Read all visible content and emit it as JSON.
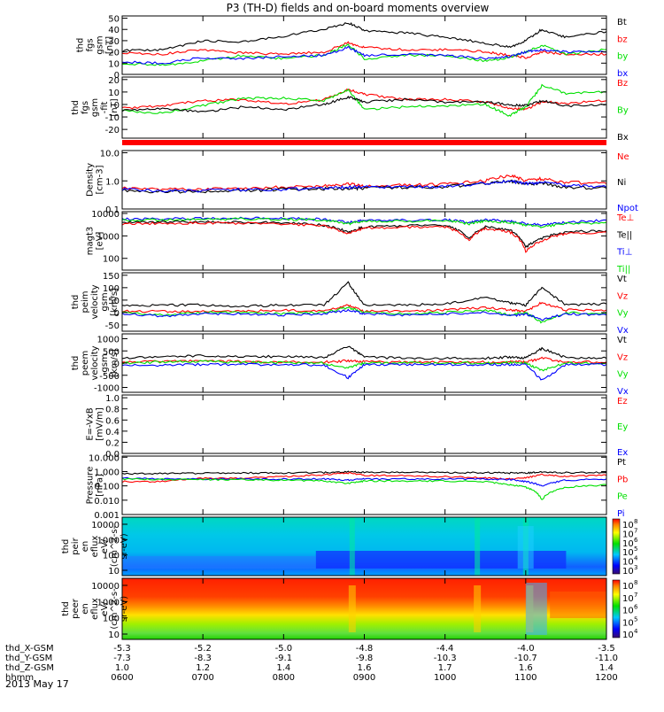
{
  "title": "P3 (TH-D) fields and on-board moments overview",
  "date": "2013 May 17",
  "colorbar_labels": [
    "10",
    "10",
    "10",
    "10",
    "10",
    "10"
  ],
  "colorbar_exponents": [
    "8",
    "7",
    "6",
    "5",
    "4",
    "3"
  ],
  "colorbar2_exponents": [
    "8",
    "7",
    "6",
    "5",
    "4"
  ],
  "colors": {
    "black": "#000000",
    "red": "#ff0000",
    "green": "#00e000",
    "blue": "#0000ff",
    "ffgreen": "#00cc00"
  },
  "footer": {
    "rows": [
      {
        "label": "thd_X-GSM",
        "values": [
          "-5.3",
          "-5.2",
          "-5.0",
          "-4.8",
          "-4.4",
          "-4.0",
          "-3.5"
        ]
      },
      {
        "label": "thd_Y-GSM",
        "values": [
          "-7.3",
          "-8.3",
          "-9.1",
          "-9.8",
          "-10.3",
          "-10.7",
          "-11.0"
        ]
      },
      {
        "label": "thd_Z-GSM",
        "values": [
          "1.0",
          "1.2",
          "1.4",
          "1.6",
          "1.7",
          "1.6",
          "1.4"
        ]
      },
      {
        "label": "hhmm",
        "values": [
          "0600",
          "0700",
          "0800",
          "0900",
          "1000",
          "1100",
          "1200"
        ]
      }
    ]
  },
  "chart_data": [
    {
      "type": "line",
      "ylabel": [
        "thd",
        "fgs",
        "gsm",
        "[nT]"
      ],
      "yticks": [
        "50",
        "40",
        "30",
        "20",
        "10",
        "0"
      ],
      "ylim": [
        0,
        52
      ],
      "legend": [
        {
          "text": "Bt",
          "color": "#000000"
        },
        {
          "text": "bz",
          "color": "#ff0000"
        },
        {
          "text": "by",
          "color": "#00e000"
        },
        {
          "text": "bx",
          "color": "#0000ff"
        }
      ],
      "x": [
        6.0,
        6.5,
        7.0,
        7.5,
        8.0,
        8.5,
        8.8,
        9.0,
        9.5,
        10.0,
        10.5,
        10.8,
        11.0,
        11.2,
        11.5,
        12.0
      ],
      "series": [
        {
          "name": "Bt",
          "color": "#000000",
          "values": [
            21,
            22,
            30,
            29,
            34,
            40,
            46,
            39,
            37,
            33,
            28,
            24,
            30,
            40,
            33,
            38
          ]
        },
        {
          "name": "bz",
          "color": "#ff0000",
          "values": [
            19,
            18,
            22,
            19,
            18,
            20,
            28,
            24,
            22,
            22,
            20,
            17,
            15,
            20,
            18,
            18
          ]
        },
        {
          "name": "by",
          "color": "#00e000",
          "values": [
            10,
            8,
            12,
            17,
            14,
            17,
            27,
            14,
            17,
            17,
            12,
            15,
            20,
            26,
            18,
            22
          ]
        },
        {
          "name": "bx",
          "color": "#0000ff",
          "values": [
            11,
            10,
            15,
            14,
            16,
            17,
            24,
            17,
            18,
            17,
            14,
            16,
            20,
            22,
            20,
            20
          ]
        }
      ]
    },
    {
      "type": "line",
      "ylabel": [
        "thd",
        "fgs",
        "gsm",
        "-fit",
        "[nT]"
      ],
      "yticks": [
        "20",
        "10",
        "0",
        "-10",
        "-20"
      ],
      "ylim": [
        -27,
        22
      ],
      "legend": [
        {
          "text": "Bz",
          "color": "#ff0000"
        },
        {
          "text": "By",
          "color": "#00e000"
        },
        {
          "text": "Bx",
          "color": "#000000"
        }
      ],
      "x": [
        6.0,
        6.5,
        7.0,
        7.5,
        8.0,
        8.5,
        8.8,
        9.0,
        9.5,
        10.0,
        10.5,
        10.8,
        11.0,
        11.2,
        11.5,
        12.0
      ],
      "series": [
        {
          "name": "Bz",
          "color": "#ff0000",
          "values": [
            -3,
            -1,
            3,
            4,
            0,
            4,
            12,
            8,
            4,
            4,
            2,
            -3,
            -4,
            2,
            1,
            3
          ]
        },
        {
          "name": "By",
          "color": "#00e000",
          "values": [
            -5,
            -7,
            -1,
            5,
            5,
            3,
            12,
            -4,
            -2,
            -1,
            0,
            -9,
            -2,
            15,
            9,
            10
          ]
        },
        {
          "name": "Bx",
          "color": "#000000",
          "values": [
            -5,
            -3,
            -6,
            -2,
            -4,
            0,
            6,
            2,
            4,
            2,
            2,
            0,
            -1,
            3,
            -1,
            0
          ]
        }
      ]
    },
    {
      "type": "line",
      "ylabel": [
        "Density",
        "[cm-3]"
      ],
      "yticks": [
        "10.0",
        "1.0",
        "0.1"
      ],
      "log": true,
      "ylim": [
        0.1,
        12
      ],
      "legend": [
        {
          "text": "Ne",
          "color": "#ff0000"
        },
        {
          "text": "Ni",
          "color": "#000000"
        },
        {
          "text": "Npot",
          "color": "#0000ff"
        }
      ],
      "x": [
        6.0,
        6.5,
        7.0,
        7.5,
        8.0,
        8.5,
        8.8,
        9.0,
        9.5,
        10.0,
        10.5,
        10.8,
        11.0,
        11.2,
        11.5,
        12.0
      ],
      "series": [
        {
          "name": "Ne",
          "color": "#ff0000",
          "values": [
            0.55,
            0.5,
            0.5,
            0.55,
            0.6,
            0.65,
            0.8,
            0.65,
            0.7,
            0.75,
            1.0,
            1.6,
            1.0,
            1.2,
            0.9,
            0.8
          ]
        },
        {
          "name": "Ni",
          "color": "#000000",
          "values": [
            0.45,
            0.42,
            0.42,
            0.45,
            0.5,
            0.52,
            0.55,
            0.55,
            0.6,
            0.62,
            0.8,
            1.0,
            0.75,
            0.8,
            0.6,
            0.55
          ]
        },
        {
          "name": "Npot",
          "color": "#0000ff",
          "values": [
            0.5,
            0.45,
            0.45,
            0.5,
            0.5,
            0.55,
            0.6,
            0.6,
            0.6,
            0.65,
            0.8,
            1.0,
            0.8,
            0.9,
            0.7,
            0.6
          ]
        }
      ]
    },
    {
      "type": "line",
      "ylabel": [
        "magt3",
        "[eV]"
      ],
      "yticks": [
        "10000",
        "1000",
        "100"
      ],
      "log": true,
      "ylim": [
        30,
        12000
      ],
      "legend": [
        {
          "text": "Te⊥",
          "color": "#ff0000"
        },
        {
          "text": "Te||",
          "color": "#000000"
        },
        {
          "text": "Ti⊥",
          "color": "#0000ff"
        },
        {
          "text": "Ti||",
          "color": "#00e000"
        }
      ],
      "x": [
        6.0,
        6.5,
        7.0,
        7.5,
        8.0,
        8.5,
        8.8,
        9.0,
        9.5,
        10.0,
        10.3,
        10.5,
        10.8,
        11.0,
        11.2,
        11.5,
        12.0
      ],
      "series": [
        {
          "name": "Ti⊥",
          "color": "#0000ff",
          "values": [
            5500,
            5800,
            6000,
            6200,
            6000,
            5500,
            4000,
            5000,
            5000,
            5200,
            4000,
            5200,
            4500,
            3500,
            3000,
            4000,
            5000
          ]
        },
        {
          "name": "Ti||",
          "color": "#00e000",
          "values": [
            5000,
            5200,
            5500,
            5800,
            5500,
            5000,
            3500,
            4500,
            4500,
            4800,
            3500,
            4800,
            4000,
            3000,
            2500,
            3500,
            4000
          ]
        },
        {
          "name": "Te||",
          "color": "#000000",
          "values": [
            4000,
            4200,
            4200,
            4000,
            3800,
            3000,
            1500,
            2500,
            2800,
            3000,
            700,
            2500,
            1800,
            300,
            800,
            1500,
            1700
          ]
        },
        {
          "name": "Te⊥",
          "color": "#ff0000",
          "values": [
            3500,
            3700,
            3800,
            3600,
            3400,
            2800,
            1200,
            2200,
            2500,
            2600,
            600,
            2200,
            1500,
            200,
            600,
            1300,
            1500
          ]
        }
      ]
    },
    {
      "type": "line",
      "ylabel": [
        "thd",
        "peim",
        "velocity",
        "gsm",
        "[km/s]"
      ],
      "yticks": [
        "150",
        "100",
        "50",
        "0",
        "-50"
      ],
      "ylim": [
        -75,
        160
      ],
      "legend": [
        {
          "text": "Vt",
          "color": "#000000"
        },
        {
          "text": "Vz",
          "color": "#ff0000"
        },
        {
          "text": "Vy",
          "color": "#00e000"
        },
        {
          "text": "Vx",
          "color": "#0000ff"
        }
      ],
      "x": [
        6.0,
        6.5,
        7.0,
        7.5,
        8.0,
        8.5,
        8.8,
        9.0,
        9.5,
        10.0,
        10.5,
        10.8,
        11.0,
        11.2,
        11.5,
        12.0
      ],
      "series": [
        {
          "name": "Vt",
          "color": "#000000",
          "values": [
            25,
            30,
            30,
            25,
            30,
            30,
            120,
            30,
            30,
            35,
            60,
            40,
            30,
            100,
            30,
            35
          ]
        },
        {
          "name": "Vz",
          "color": "#ff0000",
          "values": [
            5,
            5,
            5,
            5,
            10,
            5,
            30,
            5,
            5,
            10,
            20,
            10,
            5,
            40,
            10,
            10
          ]
        },
        {
          "name": "Vy",
          "color": "#00e000",
          "values": [
            0,
            -10,
            0,
            0,
            -5,
            0,
            20,
            0,
            -5,
            0,
            10,
            -10,
            0,
            -40,
            0,
            -5
          ]
        },
        {
          "name": "Vx",
          "color": "#0000ff",
          "values": [
            -5,
            -15,
            -5,
            -5,
            -10,
            -5,
            10,
            -5,
            -10,
            -5,
            0,
            -15,
            -5,
            -30,
            -5,
            -10
          ]
        }
      ]
    },
    {
      "type": "line",
      "ylabel": [
        "thd",
        "peem",
        "velocity",
        "gsm",
        "[km/s]"
      ],
      "yticks": [
        "1000",
        "500",
        "0",
        "-500",
        "-1000"
      ],
      "ylim": [
        -1200,
        1200
      ],
      "legend": [
        {
          "text": "Vt",
          "color": "#000000"
        },
        {
          "text": "Vz",
          "color": "#ff0000"
        },
        {
          "text": "Vy",
          "color": "#00e000"
        },
        {
          "text": "Vx",
          "color": "#0000ff"
        }
      ],
      "x": [
        6.0,
        6.5,
        7.0,
        7.5,
        8.0,
        8.5,
        8.8,
        9.0,
        9.5,
        10.0,
        10.5,
        10.8,
        11.0,
        11.2,
        11.5,
        12.0
      ],
      "series": [
        {
          "name": "Vt",
          "color": "#000000",
          "values": [
            200,
            280,
            300,
            280,
            260,
            220,
            700,
            250,
            200,
            200,
            200,
            250,
            200,
            600,
            220,
            200
          ]
        },
        {
          "name": "Vz",
          "color": "#ff0000",
          "values": [
            50,
            80,
            80,
            60,
            50,
            40,
            100,
            50,
            40,
            40,
            40,
            50,
            40,
            200,
            40,
            40
          ]
        },
        {
          "name": "Vy",
          "color": "#00e000",
          "values": [
            0,
            50,
            60,
            30,
            20,
            0,
            -200,
            0,
            0,
            0,
            0,
            20,
            0,
            -300,
            0,
            0
          ]
        },
        {
          "name": "Vx",
          "color": "#0000ff",
          "values": [
            -50,
            -100,
            -50,
            -60,
            -60,
            -80,
            -600,
            -60,
            -60,
            -60,
            -60,
            -60,
            -60,
            -700,
            -60,
            -60
          ]
        }
      ]
    },
    {
      "type": "line",
      "ylabel": [
        "E=-VxB",
        "[mV/m]"
      ],
      "yticks": [
        "1.0",
        "0.8",
        "0.6",
        "0.4",
        "0.2",
        "0.0"
      ],
      "ylim": [
        0,
        1.05
      ],
      "legend": [
        {
          "text": "Ez",
          "color": "#ff0000"
        },
        {
          "text": "Ey",
          "color": "#00e000"
        },
        {
          "text": "Ex",
          "color": "#0000ff"
        }
      ],
      "x": [],
      "series": []
    },
    {
      "type": "line",
      "ylabel": [
        "Pressure",
        "[nPa]"
      ],
      "yticks": [
        "10.000",
        "1.000",
        "0.100",
        "0.010",
        "0.001"
      ],
      "log": true,
      "ylim": [
        0.001,
        12
      ],
      "legend": [
        {
          "text": "Pt",
          "color": "#000000"
        },
        {
          "text": "Pb",
          "color": "#ff0000"
        },
        {
          "text": "Pe",
          "color": "#00e000"
        },
        {
          "text": "Pi",
          "color": "#0000ff"
        }
      ],
      "x": [
        6.0,
        6.5,
        7.0,
        7.5,
        8.0,
        8.5,
        8.8,
        9.0,
        9.5,
        10.0,
        10.5,
        10.8,
        11.0,
        11.2,
        11.5,
        12.0
      ],
      "series": [
        {
          "name": "Pt",
          "color": "#000000",
          "values": [
            0.7,
            0.75,
            0.75,
            0.8,
            0.8,
            0.85,
            0.95,
            0.9,
            0.9,
            0.85,
            0.85,
            0.8,
            0.8,
            0.9,
            0.85,
            0.85
          ]
        },
        {
          "name": "Pb",
          "color": "#ff0000",
          "values": [
            0.2,
            0.2,
            0.35,
            0.35,
            0.45,
            0.6,
            0.8,
            0.55,
            0.5,
            0.45,
            0.35,
            0.3,
            0.35,
            0.6,
            0.45,
            0.55
          ]
        },
        {
          "name": "Pi",
          "color": "#0000ff",
          "values": [
            0.35,
            0.3,
            0.3,
            0.3,
            0.3,
            0.3,
            0.25,
            0.3,
            0.3,
            0.3,
            0.3,
            0.28,
            0.2,
            0.1,
            0.25,
            0.3
          ]
        },
        {
          "name": "Pe",
          "color": "#00e000",
          "values": [
            0.3,
            0.28,
            0.27,
            0.27,
            0.25,
            0.22,
            0.15,
            0.22,
            0.22,
            0.22,
            0.2,
            0.12,
            0.08,
            0.01,
            0.08,
            0.12
          ]
        }
      ]
    },
    {
      "type": "heatmap",
      "ylabel": [
        "thd",
        "peir",
        "en",
        "eflux",
        "eV/",
        "(cm^2-s-",
        "sr-eV)"
      ],
      "yticks": [
        "10000",
        "1000",
        "100",
        "10"
      ]
    },
    {
      "type": "heatmap",
      "ylabel": [
        "thd",
        "peer",
        "en",
        "eflux",
        "eV/",
        "(cm^2-s-",
        "sr-eV)"
      ],
      "yticks": [
        "10000",
        "1000",
        "100",
        "10"
      ]
    }
  ]
}
